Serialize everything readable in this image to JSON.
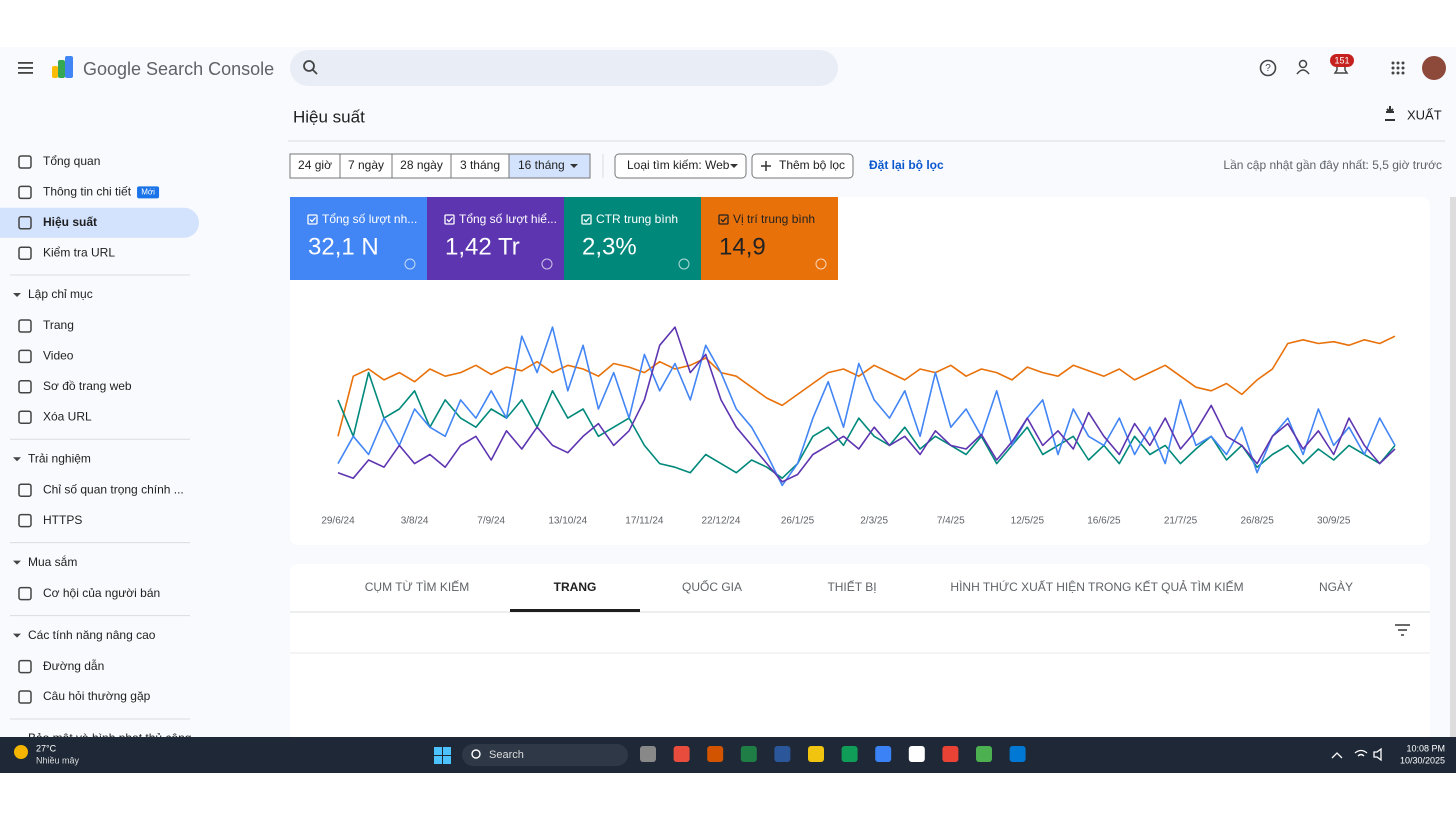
{
  "header": {
    "product": "Google Search Console",
    "notifications": "151"
  },
  "sidebar": {
    "top": [
      "Tổng quan",
      "Thông tin chi tiết",
      "Hiệu suất",
      "Kiểm tra URL"
    ],
    "badge": "Mới",
    "sections": [
      {
        "title": "Lập chỉ mục",
        "items": [
          "Trang",
          "Video",
          "Sơ đồ trang web",
          "Xóa URL"
        ]
      },
      {
        "title": "Trải nghiệm",
        "items": [
          "Chỉ số quan trọng chính ...",
          "HTTPS"
        ]
      },
      {
        "title": "Mua sắm",
        "items": [
          "Cơ hội của người bán"
        ]
      },
      {
        "title": "Các tính năng nâng cao",
        "items": [
          "Đường dẫn",
          "Câu hỏi thường gặp"
        ]
      },
      {
        "title": "Bảo mật và hình phạt thủ công",
        "items": []
      }
    ]
  },
  "page": {
    "title": "Hiệu suất",
    "export": "XUẤT"
  },
  "filters": {
    "ranges": [
      "24 giờ",
      "7 ngày",
      "28 ngày",
      "3 tháng",
      "16 tháng"
    ],
    "search_type": "Loại tìm kiếm: Web",
    "add_filter": "Thêm bộ lọc",
    "reset": "Đặt lại bộ lọc",
    "updated": "Lần cập nhật gần đây nhất: 5,5 giờ trước"
  },
  "metrics": [
    "32,1 N",
    "1,42 Tr",
    "2,3%",
    "14,9"
  ],
  "chart_data": {
    "type": "line",
    "x": [
      0,
      7,
      14,
      21,
      28,
      35,
      42,
      49,
      56,
      63,
      70,
      77,
      84,
      91,
      98,
      105,
      112,
      119,
      126,
      133,
      140,
      147,
      154,
      161,
      168,
      175,
      182,
      189,
      196,
      203,
      210,
      217,
      224,
      231,
      238,
      245,
      252,
      259,
      266,
      273,
      280,
      287,
      294,
      301,
      308,
      315,
      322,
      329,
      336,
      343,
      350,
      357,
      364,
      371,
      378,
      385,
      392,
      399,
      406,
      413,
      420,
      427,
      434,
      441,
      448,
      455,
      462,
      469,
      476,
      483
    ],
    "xlim": [
      0,
      483
    ],
    "ylim": [
      0,
      100
    ],
    "xticks": [
      {
        "value": 0,
        "label": "29/6/24"
      },
      {
        "value": 35,
        "label": "3/8/24"
      },
      {
        "value": 70,
        "label": "7/9/24"
      },
      {
        "value": 105,
        "label": "13/10/24"
      },
      {
        "value": 140,
        "label": "17/11/24"
      },
      {
        "value": 175,
        "label": "22/12/24"
      },
      {
        "value": 210,
        "label": "26/1/25"
      },
      {
        "value": 245,
        "label": "2/3/25"
      },
      {
        "value": 280,
        "label": "7/4/25"
      },
      {
        "value": 315,
        "label": "12/5/25"
      },
      {
        "value": 350,
        "label": "16/6/25"
      },
      {
        "value": 385,
        "label": "21/7/25"
      },
      {
        "value": 420,
        "label": "26/8/25"
      },
      {
        "value": 455,
        "label": "30/9/25"
      }
    ],
    "series": [
      {
        "name": "Tổng số lượt nh...",
        "color": "#4285f4",
        "values": [
          20,
          35,
          25,
          45,
          30,
          50,
          40,
          35,
          55,
          45,
          60,
          45,
          90,
          70,
          95,
          60,
          85,
          50,
          70,
          45,
          80,
          60,
          75,
          55,
          85,
          70,
          50,
          40,
          25,
          8,
          20,
          45,
          65,
          40,
          75,
          55,
          45,
          60,
          35,
          70,
          40,
          50,
          35,
          60,
          30,
          45,
          55,
          25,
          50,
          35,
          30,
          45,
          25,
          40,
          20,
          55,
          30,
          35,
          25,
          40,
          15,
          35,
          45,
          25,
          50,
          30,
          40,
          25,
          45,
          30
        ]
      },
      {
        "name": "Tổng số lượt hiể...",
        "color": "#5e35b1",
        "values": [
          15,
          12,
          22,
          18,
          30,
          20,
          25,
          18,
          30,
          35,
          22,
          38,
          28,
          40,
          30,
          26,
          35,
          42,
          30,
          38,
          55,
          85,
          95,
          70,
          80,
          55,
          40,
          30,
          20,
          10,
          14,
          25,
          30,
          35,
          28,
          40,
          30,
          35,
          25,
          38,
          30,
          28,
          36,
          22,
          32,
          45,
          30,
          38,
          28,
          48,
          35,
          25,
          42,
          30,
          45,
          28,
          38,
          52,
          35,
          30,
          20,
          35,
          42,
          28,
          38,
          25,
          45,
          30,
          20,
          28
        ]
      },
      {
        "name": "CTR trung bình",
        "color": "#00897b",
        "values": [
          55,
          35,
          70,
          45,
          50,
          60,
          40,
          55,
          45,
          40,
          50,
          45,
          55,
          40,
          60,
          45,
          50,
          35,
          40,
          45,
          30,
          20,
          18,
          15,
          25,
          20,
          15,
          22,
          18,
          12,
          20,
          35,
          40,
          30,
          45,
          35,
          30,
          40,
          28,
          35,
          30,
          25,
          35,
          20,
          30,
          40,
          25,
          30,
          35,
          22,
          30,
          20,
          35,
          25,
          30,
          20,
          28,
          35,
          22,
          30,
          18,
          25,
          30,
          20,
          28,
          22,
          30,
          25,
          20,
          30
        ]
      },
      {
        "name": "Vị trí trung bình",
        "color": "#e8710a",
        "values": [
          35,
          68,
          72,
          66,
          70,
          65,
          72,
          68,
          70,
          74,
          69,
          73,
          71,
          76,
          70,
          74,
          72,
          68,
          75,
          73,
          70,
          76,
          72,
          74,
          78,
          70,
          68,
          62,
          56,
          52,
          58,
          64,
          70,
          72,
          68,
          74,
          70,
          66,
          72,
          70,
          74,
          68,
          72,
          70,
          66,
          73,
          70,
          68,
          74,
          71,
          68,
          72,
          66,
          70,
          74,
          68,
          62,
          60,
          64,
          58,
          66,
          72,
          86,
          88,
          86,
          87,
          85,
          88,
          86,
          90
        ]
      }
    ]
  },
  "tabs": [
    "CỤM TỪ TÌM KIẾM",
    "TRANG",
    "QUỐC GIA",
    "THIẾT BỊ",
    "HÌNH THỨC XUẤT HIỆN TRONG KẾT QUẢ TÌM KIẾM",
    "NGÀY"
  ],
  "taskbar": {
    "temp": "27°C",
    "weather": "Nhiều mây",
    "search": "Search",
    "time": "10:08 PM",
    "date": "10/30/2025"
  }
}
